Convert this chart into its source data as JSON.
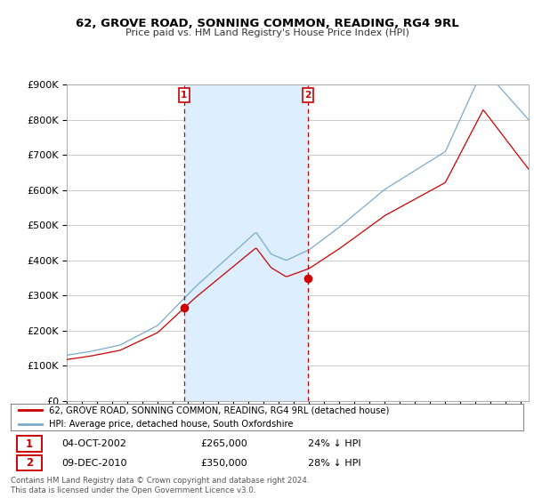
{
  "title": "62, GROVE ROAD, SONNING COMMON, READING, RG4 9RL",
  "subtitle": "Price paid vs. HM Land Registry's House Price Index (HPI)",
  "ylim": [
    0,
    900000
  ],
  "xlim_start": 1995.0,
  "xlim_end": 2025.5,
  "legend_line1": "62, GROVE ROAD, SONNING COMMON, READING, RG4 9RL (detached house)",
  "legend_line2": "HPI: Average price, detached house, South Oxfordshire",
  "marker1_date": "04-OCT-2002",
  "marker1_price": "£265,000",
  "marker1_hpi": "24% ↓ HPI",
  "marker1_x": 2002.75,
  "marker1_y": 265000,
  "marker2_date": "09-DEC-2010",
  "marker2_price": "£350,000",
  "marker2_hpi": "28% ↓ HPI",
  "marker2_x": 2010.92,
  "marker2_y": 350000,
  "red_color": "#cc0000",
  "blue_color": "#7aaacc",
  "highlight_color": "#ddeeff",
  "marker_box_color": "#cc0000",
  "plot_bg": "#ffffff",
  "grid_color": "#cccccc",
  "footer_line1": "Contains HM Land Registry data © Crown copyright and database right 2024.",
  "footer_line2": "This data is licensed under the Open Government Licence v3.0."
}
